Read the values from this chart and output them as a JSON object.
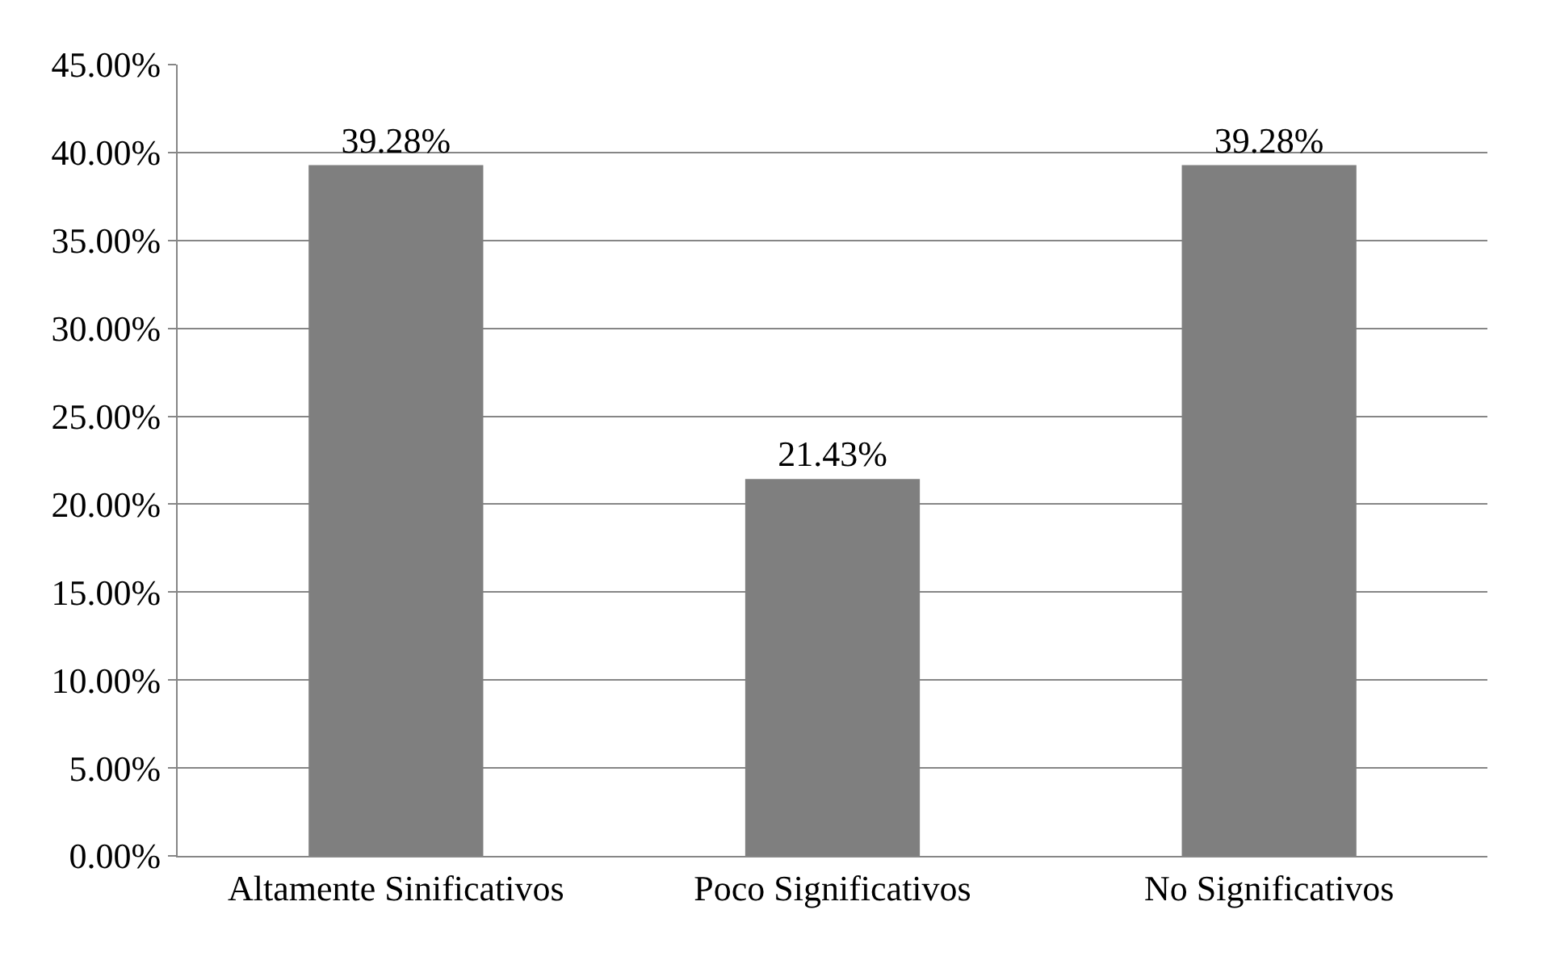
{
  "chart_data": {
    "type": "bar",
    "categories": [
      "Altamente Sinificativos",
      "Poco Significativos",
      "No Significativos"
    ],
    "values": [
      39.28,
      21.43,
      39.28
    ],
    "color": "#7f7f7f",
    "value_labels": [
      "39.28%",
      "21.43%",
      "39.28%"
    ],
    "ylim": [
      0,
      45
    ],
    "yticks": [
      {
        "value": 0,
        "label": "0.00%"
      },
      {
        "value": 5,
        "label": "5.00%"
      },
      {
        "value": 10,
        "label": "10.00%"
      },
      {
        "value": 15,
        "label": "15.00%"
      },
      {
        "value": 20,
        "label": "20.00%"
      },
      {
        "value": 25,
        "label": "25.00%"
      },
      {
        "value": 30,
        "label": "30.00%"
      },
      {
        "value": 35,
        "label": "35.00%"
      },
      {
        "value": 40,
        "label": "40.00%"
      },
      {
        "value": 45,
        "label": "45.00%"
      }
    ],
    "grid": "y",
    "legend": false
  }
}
